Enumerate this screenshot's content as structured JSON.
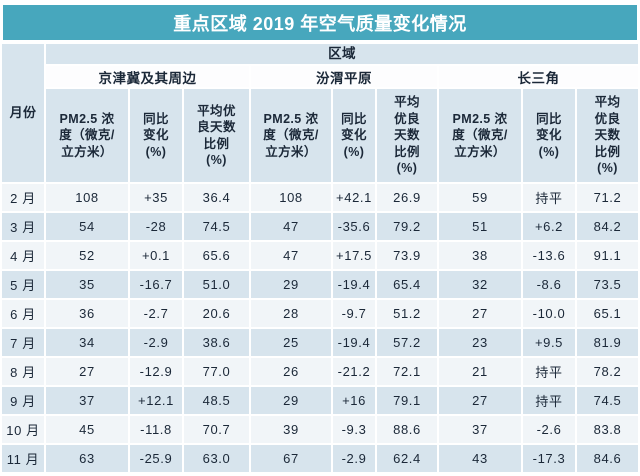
{
  "title": "重点区域 2019 年空气质量变化情况",
  "colors": {
    "title_bg": "#47a7bd",
    "title_text": "#ffffff",
    "header_bg": "#d7e4ed",
    "row_light_bg": "#f1f5f8",
    "row_blue_bg": "#d7e4ed",
    "text": "#1b2838"
  },
  "table": {
    "month_col_header": "月份",
    "region_group_header": "区域",
    "groups": [
      {
        "name": "京津冀及其周边",
        "metrics": [
          [
            "PM2.5 浓",
            "度（微克/",
            "立方米）"
          ],
          [
            "同比",
            "变化",
            "(%)"
          ],
          [
            "平均优",
            "良天数",
            "比例",
            "(%)"
          ]
        ]
      },
      {
        "name": "汾渭平原",
        "metrics": [
          [
            "PM2.5 浓",
            "度（微克/",
            "立方米）"
          ],
          [
            "同比",
            "变化",
            "(%)"
          ],
          [
            "平均",
            "优良",
            "天数",
            "比例",
            "(%)"
          ]
        ]
      },
      {
        "name": "长三角",
        "metrics": [
          [
            "PM2.5 浓",
            "度（微克/",
            "立方米）"
          ],
          [
            "同比",
            "变化",
            "(%)"
          ],
          [
            "平均",
            "优良",
            "天数",
            "比例",
            "(%)"
          ]
        ]
      }
    ],
    "rows": [
      {
        "month": "2 月",
        "values": [
          "108",
          "+35",
          "36.4",
          "108",
          "+42.1",
          "26.9",
          "59",
          "持平",
          "71.2"
        ]
      },
      {
        "month": "3 月",
        "values": [
          "54",
          "-28",
          "74.5",
          "47",
          "-35.6",
          "79.2",
          "51",
          "+6.2",
          "84.2"
        ]
      },
      {
        "month": "4 月",
        "values": [
          "52",
          "+0.1",
          "65.6",
          "47",
          "+17.5",
          "73.9",
          "38",
          "-13.6",
          "91.1"
        ]
      },
      {
        "month": "5 月",
        "values": [
          "35",
          "-16.7",
          "51.0",
          "29",
          "-19.4",
          "65.4",
          "32",
          "-8.6",
          "73.5"
        ]
      },
      {
        "month": "6 月",
        "values": [
          "36",
          "-2.7",
          "20.6",
          "28",
          "-9.7",
          "51.2",
          "27",
          "-10.0",
          "65.1"
        ]
      },
      {
        "month": "7 月",
        "values": [
          "34",
          "-2.9",
          "38.6",
          "25",
          "-19.4",
          "57.2",
          "23",
          "+9.5",
          "81.9"
        ]
      },
      {
        "month": "8 月",
        "values": [
          "27",
          "-12.9",
          "77.0",
          "26",
          "-21.2",
          "72.1",
          "21",
          "持平",
          "78.2"
        ]
      },
      {
        "month": "9 月",
        "values": [
          "37",
          "+12.1",
          "48.5",
          "29",
          "+16",
          "79.1",
          "27",
          "持平",
          "74.5"
        ]
      },
      {
        "month": "10 月",
        "values": [
          "45",
          "-11.8",
          "70.7",
          "39",
          "-9.3",
          "88.6",
          "37",
          "-2.6",
          "83.8"
        ]
      },
      {
        "month": "11 月",
        "values": [
          "63",
          "-25.9",
          "63.0",
          "67",
          "-2.9",
          "62.4",
          "43",
          "-17.3",
          "84.6"
        ]
      }
    ]
  }
}
